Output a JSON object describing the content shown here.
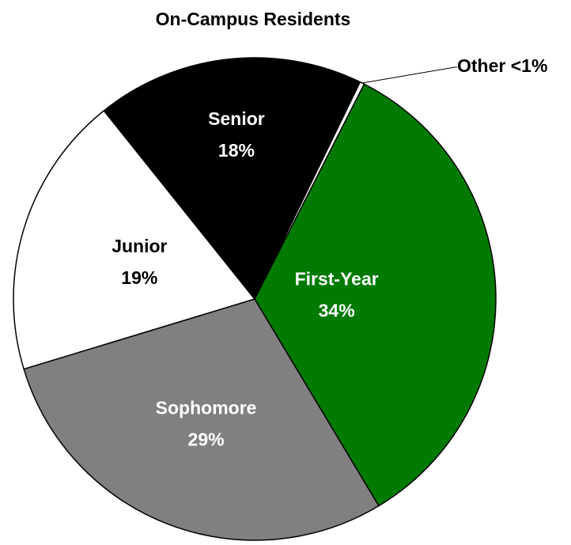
{
  "chart_data": {
    "type": "pie",
    "title": "On-Campus Residents",
    "categories": [
      "First-Year",
      "Sophomore",
      "Junior",
      "Senior",
      "Other"
    ],
    "values": [
      34,
      29,
      19,
      18,
      0.3
    ],
    "value_labels": [
      "34%",
      "29%",
      "19%",
      "18%",
      "<1%"
    ],
    "colors": [
      "#007a00",
      "#808080",
      "#ffffff",
      "#000000",
      "#ffffff"
    ]
  }
}
